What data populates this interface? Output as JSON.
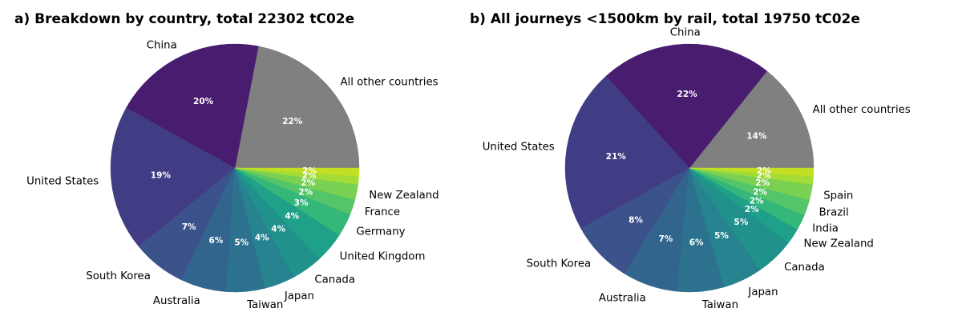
{
  "chart_data": [
    {
      "type": "pie",
      "title": "a) Breakdown by country, total 22302 tC02e",
      "slices": [
        {
          "name": "All other countries",
          "value": 22,
          "label": "22%",
          "color": "#808080"
        },
        {
          "name": "China",
          "value": 20,
          "label": "20%",
          "color": "#481c6e"
        },
        {
          "name": "United States",
          "value": 19,
          "label": "19%",
          "color": "#413d84"
        },
        {
          "name": "South Korea",
          "value": 7,
          "label": "7%",
          "color": "#3b528b"
        },
        {
          "name": "Australia",
          "value": 6,
          "label": "6%",
          "color": "#32658e"
        },
        {
          "name": "Taiwan",
          "value": 5,
          "label": "5%",
          "color": "#2c728e"
        },
        {
          "name": "Japan",
          "value": 4,
          "label": "4%",
          "color": "#26838f"
        },
        {
          "name": "Canada",
          "value": 4,
          "label": "4%",
          "color": "#21918c"
        },
        {
          "name": "United Kingdom",
          "value": 4,
          "label": "4%",
          "color": "#1fa088"
        },
        {
          "name": "Germany",
          "value": 3,
          "label": "3%",
          "color": "#35b779"
        },
        {
          "name": "France",
          "value": 2,
          "label": "2%",
          "color": "#54c568"
        },
        {
          "name": "New Zealand",
          "value": 2,
          "label": "2%",
          "color": "#7ad151"
        }
      ],
      "extra_slices": [
        {
          "label": "2%",
          "color": "#a5db36"
        },
        {
          "label": "2%",
          "color": "#c2df23"
        }
      ]
    },
    {
      "type": "pie",
      "title": "b) All journeys <1500km by rail, total 19750 tC02e",
      "slices": [
        {
          "name": "All other countries",
          "value": 14,
          "label": "14%",
          "color": "#808080"
        },
        {
          "name": "China",
          "value": 22,
          "label": "22%",
          "color": "#481c6e"
        },
        {
          "name": "United States",
          "value": 21,
          "label": "21%",
          "color": "#413d84"
        },
        {
          "name": "South Korea",
          "value": 8,
          "label": "8%",
          "color": "#3b528b"
        },
        {
          "name": "Australia",
          "value": 7,
          "label": "7%",
          "color": "#32658e"
        },
        {
          "name": "Taiwan",
          "value": 6,
          "label": "6%",
          "color": "#2c728e"
        },
        {
          "name": "Japan",
          "value": 5,
          "label": "5%",
          "color": "#26838f"
        },
        {
          "name": "Canada",
          "value": 5,
          "label": "5%",
          "color": "#21918c"
        },
        {
          "name": "New Zealand",
          "value": 2,
          "label": "2%",
          "color": "#1fa088"
        },
        {
          "name": "India",
          "value": 2,
          "label": "2%",
          "color": "#35b779"
        },
        {
          "name": "Brazil",
          "value": 2,
          "label": "2%",
          "color": "#54c568"
        },
        {
          "name": "Spain",
          "value": 2,
          "label": "2%",
          "color": "#7ad151"
        }
      ],
      "extra_slices": [
        {
          "label": "2%",
          "color": "#a5db36"
        },
        {
          "label": "2%",
          "color": "#c2df23"
        }
      ]
    }
  ]
}
